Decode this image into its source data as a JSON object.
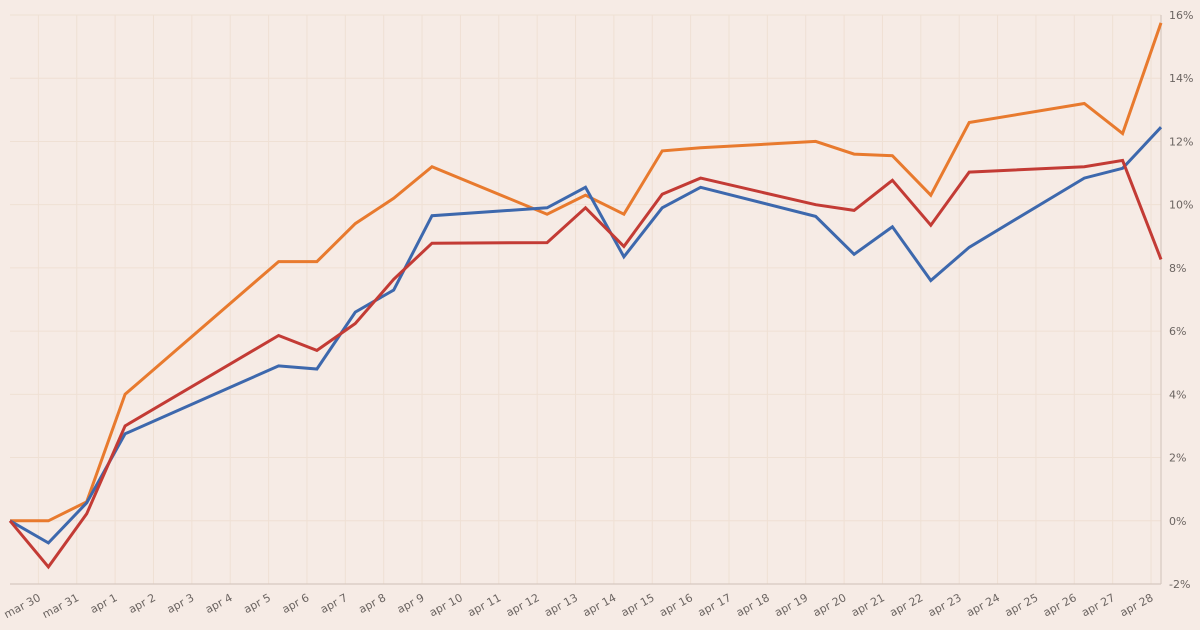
{
  "chart_data": {
    "type": "line",
    "title": "",
    "xlabel": "",
    "ylabel": "",
    "ylim": [
      -2,
      16
    ],
    "grid": true,
    "legend": "none",
    "x_ticks": [
      "mar 30",
      "mar 31",
      "apr 1",
      "apr 2",
      "apr 3",
      "apr 4",
      "apr 5",
      "apr 6",
      "apr 7",
      "apr 8",
      "apr 9",
      "apr 10",
      "apr 11",
      "apr 12",
      "apr 13",
      "apr 14",
      "apr 15",
      "apr 16",
      "apr 17",
      "apr 18",
      "apr 19",
      "apr 20",
      "apr 21",
      "apr 22",
      "apr 23",
      "apr 24",
      "apr 25",
      "apr 26",
      "apr 27",
      "apr 28"
    ],
    "y_ticks": [
      "-2%",
      "0%",
      "2%",
      "4%",
      "6%",
      "8%",
      "10%",
      "12%",
      "14%",
      "16%"
    ],
    "y_tick_values": [
      -2,
      0,
      2,
      4,
      6,
      8,
      10,
      12,
      14,
      16
    ],
    "x_day_index": [
      -1,
      0,
      1,
      2,
      6,
      7,
      8,
      9,
      10,
      13,
      14,
      15,
      16,
      17,
      20,
      21,
      22,
      23,
      24,
      27,
      28,
      29
    ],
    "series": [
      {
        "name": "orange",
        "color": "#e87a2e",
        "values": [
          0,
          0,
          0.6,
          4.0,
          8.2,
          8.2,
          9.4,
          10.2,
          11.2,
          9.7,
          10.3,
          9.7,
          11.7,
          11.8,
          12.0,
          11.6,
          11.55,
          10.3,
          12.6,
          13.2,
          12.25,
          15.75
        ]
      },
      {
        "name": "blue",
        "color": "#3d68ad",
        "values": [
          0,
          -0.7,
          0.57,
          2.75,
          4.9,
          4.8,
          6.6,
          7.3,
          9.65,
          9.9,
          10.55,
          8.35,
          9.9,
          10.55,
          9.63,
          8.43,
          9.3,
          7.6,
          8.65,
          10.84,
          11.15,
          12.45
        ]
      },
      {
        "name": "red",
        "color": "#c33b35",
        "values": [
          0,
          -1.46,
          0.22,
          3.0,
          5.86,
          5.39,
          6.24,
          7.64,
          8.78,
          8.8,
          9.9,
          8.68,
          10.33,
          10.84,
          10.0,
          9.82,
          10.77,
          9.35,
          11.03,
          11.2,
          11.4,
          8.27
        ]
      }
    ]
  }
}
